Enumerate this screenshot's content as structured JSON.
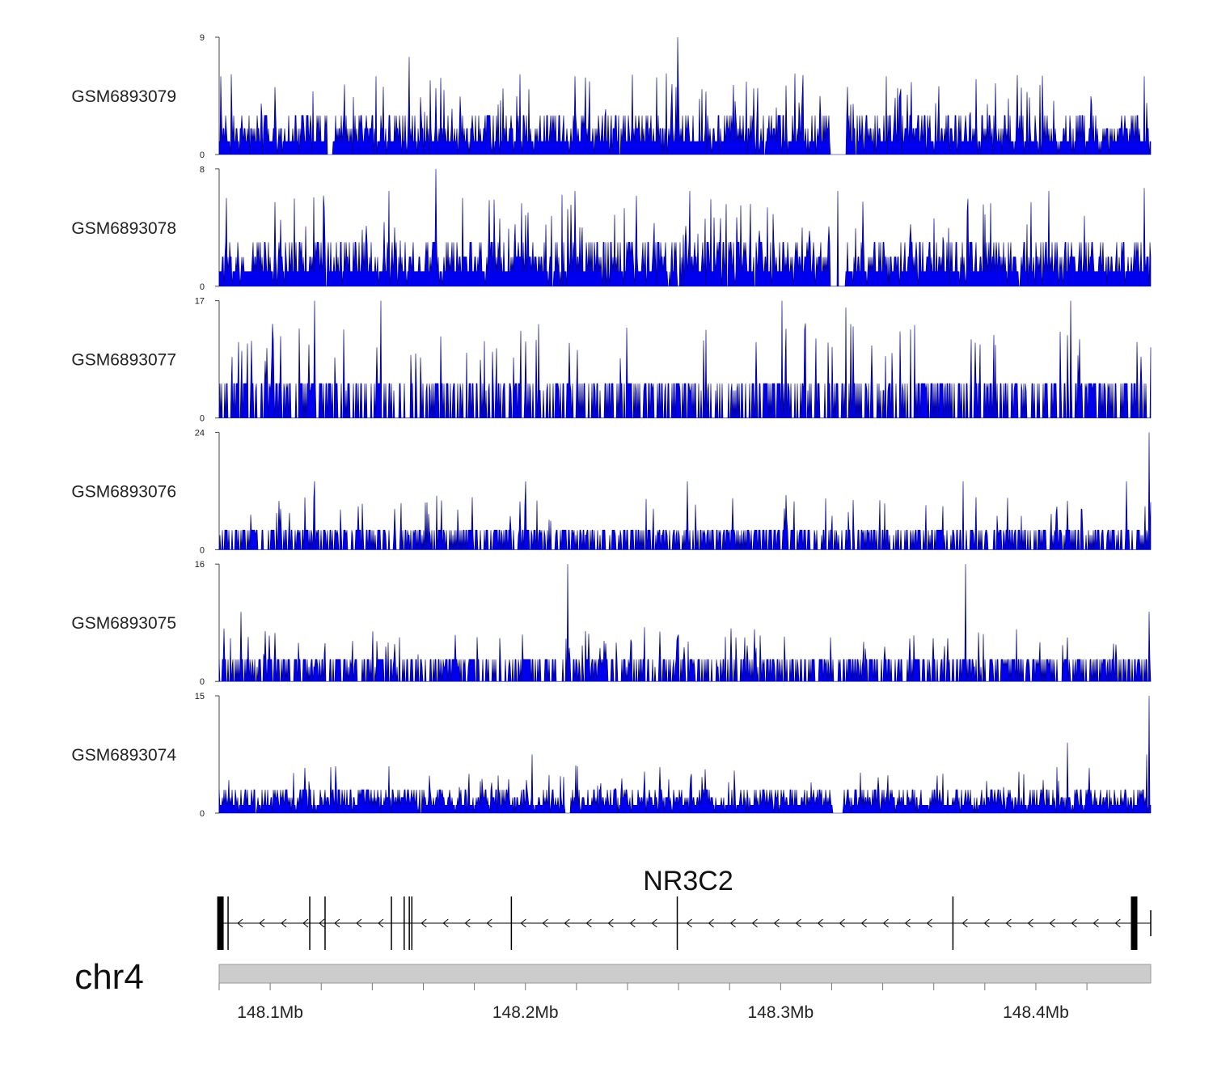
{
  "chart_data": {
    "type": "genome-coverage-tracks",
    "chromosome": "chr4",
    "region_mb": [
      148.08,
      148.445
    ],
    "colors": {
      "fill": "#0000ee",
      "stroke": "#00007a",
      "axis": "#444444",
      "gene": "#000000",
      "ideogram": "#cccccc"
    },
    "tracks": [
      {
        "name": "GSM6893079",
        "ymax": 9,
        "ymin": 0,
        "baseline": 1,
        "typical_levels": [
          2,
          3
        ],
        "spike_level": 5,
        "spike_density": 0.06,
        "peaks": [
          {
            "x_mb": 148.2595,
            "value": 9
          },
          {
            "x_mb": 148.1545,
            "value": 7.5
          },
          {
            "x_mb": 148.1415,
            "value": 6
          },
          {
            "x_mb": 148.3415,
            "value": 6
          },
          {
            "x_mb": 148.4425,
            "value": 6
          },
          {
            "x_mb": 148.2195,
            "value": 6
          },
          {
            "x_mb": 148.0805,
            "value": 6
          }
        ],
        "gaps": [
          {
            "x_mb": 148.3225,
            "width_mb": 0.006
          },
          {
            "x_mb": 148.1235,
            "width_mb": 0.002
          }
        ]
      },
      {
        "name": "GSM6893078",
        "ymax": 8,
        "ymin": 0,
        "baseline": 1,
        "typical_levels": [
          2,
          3
        ],
        "spike_level": 5,
        "spike_density": 0.07,
        "peaks": [
          {
            "x_mb": 148.165,
            "value": 8
          },
          {
            "x_mb": 148.4425,
            "value": 6.7
          },
          {
            "x_mb": 148.2195,
            "value": 6.5
          },
          {
            "x_mb": 148.2645,
            "value": 6.5
          },
          {
            "x_mb": 148.3225,
            "value": 6.5
          },
          {
            "x_mb": 148.1465,
            "value": 6.5
          },
          {
            "x_mb": 148.405,
            "value": 6.5
          }
        ],
        "gaps": [
          {
            "x_mb": 148.3225,
            "width_mb": 0.006
          }
        ]
      },
      {
        "name": "GSM6893077",
        "ymax": 17,
        "ymin": 0,
        "baseline": 0,
        "typical_levels": [
          5
        ],
        "spike_level": 11,
        "spike_density": 0.05,
        "peaks": [
          {
            "x_mb": 148.1175,
            "value": 17
          },
          {
            "x_mb": 148.1435,
            "value": 17
          },
          {
            "x_mb": 148.3005,
            "value": 17
          },
          {
            "x_mb": 148.4135,
            "value": 17
          },
          {
            "x_mb": 148.3255,
            "value": 16
          },
          {
            "x_mb": 148.4125,
            "value": 12
          },
          {
            "x_mb": 148.0875,
            "value": 11
          },
          {
            "x_mb": 148.2905,
            "value": 11
          }
        ],
        "gaps": []
      },
      {
        "name": "GSM6893076",
        "ymax": 24,
        "ymin": 0,
        "baseline": 0,
        "typical_levels": [
          4
        ],
        "spike_level": 9,
        "spike_density": 0.04,
        "peaks": [
          {
            "x_mb": 148.4445,
            "value": 24
          },
          {
            "x_mb": 148.1175,
            "value": 14
          },
          {
            "x_mb": 148.2,
            "value": 14
          },
          {
            "x_mb": 148.2635,
            "value": 14
          },
          {
            "x_mb": 148.3715,
            "value": 14
          },
          {
            "x_mb": 148.4355,
            "value": 14
          },
          {
            "x_mb": 148.1035,
            "value": 10
          },
          {
            "x_mb": 148.4125,
            "value": 10
          }
        ],
        "gaps": []
      },
      {
        "name": "GSM6893075",
        "ymax": 16,
        "ymin": 0,
        "baseline": 0,
        "typical_levels": [
          3
        ],
        "spike_level": 6,
        "spike_density": 0.05,
        "peaks": [
          {
            "x_mb": 148.2165,
            "value": 16
          },
          {
            "x_mb": 148.3725,
            "value": 16
          },
          {
            "x_mb": 148.4445,
            "value": 9.5
          },
          {
            "x_mb": 148.0885,
            "value": 9.5
          },
          {
            "x_mb": 148.1505,
            "value": 6
          },
          {
            "x_mb": 148.2825,
            "value": 6
          },
          {
            "x_mb": 148.3195,
            "value": 6
          },
          {
            "x_mb": 148.4125,
            "value": 6
          }
        ],
        "gaps": []
      },
      {
        "name": "GSM6893074",
        "ymax": 15,
        "ymin": 0,
        "baseline": 1,
        "typical_levels": [
          2,
          3
        ],
        "spike_level": 5,
        "spike_density": 0.04,
        "peaks": [
          {
            "x_mb": 148.4445,
            "value": 15
          },
          {
            "x_mb": 148.4125,
            "value": 9
          },
          {
            "x_mb": 148.2025,
            "value": 7.5
          },
          {
            "x_mb": 148.4435,
            "value": 7.5
          },
          {
            "x_mb": 148.2205,
            "value": 6
          },
          {
            "x_mb": 148.1255,
            "value": 6
          },
          {
            "x_mb": 148.1465,
            "value": 6
          }
        ],
        "gaps": [
          {
            "x_mb": 148.3225,
            "width_mb": 0.004
          },
          {
            "x_mb": 148.2165,
            "width_mb": 0.002
          }
        ]
      }
    ],
    "gene": {
      "name": "NR3C2",
      "strand": "-",
      "start_mb": 148.0805,
      "end_mb": 148.445,
      "exons": [
        {
          "x_mb": 148.0805,
          "kind": "utr"
        },
        {
          "x_mb": 148.0835,
          "kind": "cds"
        },
        {
          "x_mb": 148.1155,
          "kind": "cds"
        },
        {
          "x_mb": 148.1215,
          "kind": "cds"
        },
        {
          "x_mb": 148.1475,
          "kind": "cds"
        },
        {
          "x_mb": 148.1525,
          "kind": "cds"
        },
        {
          "x_mb": 148.1545,
          "kind": "cds"
        },
        {
          "x_mb": 148.1555,
          "kind": "cds"
        },
        {
          "x_mb": 148.1945,
          "kind": "cds"
        },
        {
          "x_mb": 148.2595,
          "kind": "cds"
        },
        {
          "x_mb": 148.3675,
          "kind": "cds"
        },
        {
          "x_mb": 148.4385,
          "kind": "utr"
        }
      ]
    },
    "axis": {
      "ticks_mb": [
        148.08,
        148.1,
        148.12,
        148.14,
        148.16,
        148.18,
        148.2,
        148.22,
        148.24,
        148.26,
        148.28,
        148.3,
        148.32,
        148.34,
        148.36,
        148.38,
        148.4,
        148.42
      ],
      "labeled_ticks": [
        {
          "mb": 148.1,
          "label": "148.1Mb"
        },
        {
          "mb": 148.2,
          "label": "148.2Mb"
        },
        {
          "mb": 148.3,
          "label": "148.3Mb"
        },
        {
          "mb": 148.4,
          "label": "148.4Mb"
        }
      ]
    }
  }
}
